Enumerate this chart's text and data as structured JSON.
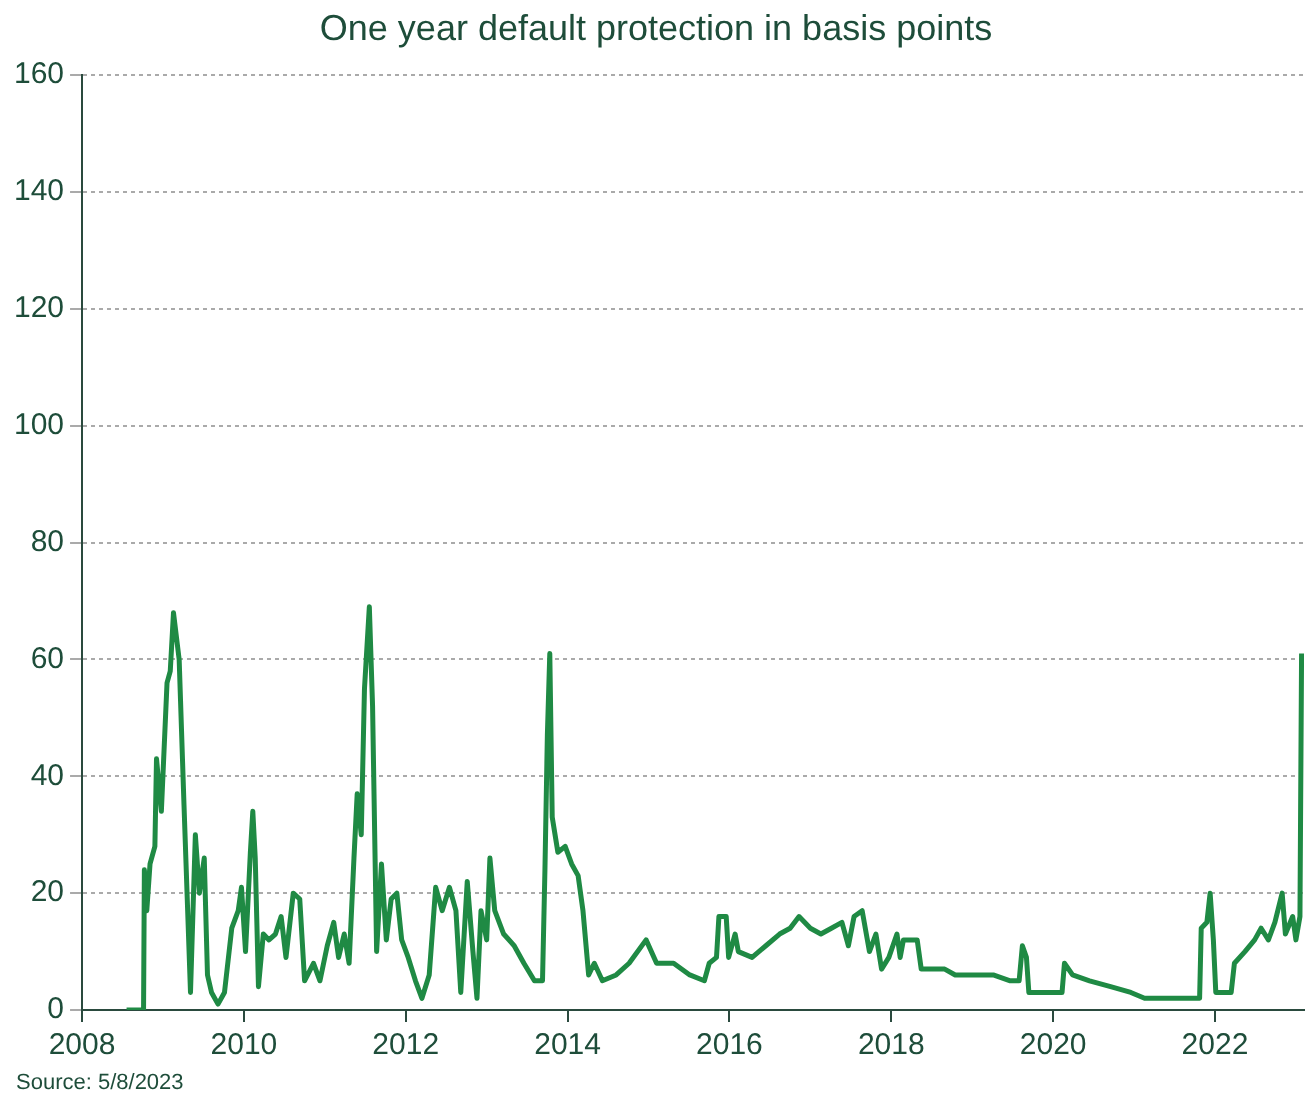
{
  "chart_data": {
    "type": "line",
    "subtitle": "One year default protection in basis points",
    "annotations": [
      "Source: 5/8/2023"
    ],
    "x": [
      2008.55,
      2008.76,
      2008.77,
      2008.8,
      2008.84,
      2008.9,
      2008.92,
      2008.98,
      2009.05,
      2009.09,
      2009.13,
      2009.2,
      2009.26,
      2009.3,
      2009.34,
      2009.4,
      2009.45,
      2009.51,
      2009.55,
      2009.6,
      2009.68,
      2009.76,
      2009.85,
      2009.93,
      2009.97,
      2010.02,
      2010.08,
      2010.11,
      2010.14,
      2010.18,
      2010.24,
      2010.31,
      2010.39,
      2010.46,
      2010.52,
      2010.61,
      2010.69,
      2010.75,
      2010.86,
      2010.94,
      2011.03,
      2011.11,
      2011.17,
      2011.24,
      2011.3,
      2011.36,
      2011.4,
      2011.45,
      2011.49,
      2011.55,
      2011.59,
      2011.64,
      2011.7,
      2011.76,
      2011.82,
      2011.89,
      2011.95,
      2012.03,
      2012.12,
      2012.2,
      2012.29,
      2012.37,
      2012.45,
      2012.54,
      2012.62,
      2012.68,
      2012.76,
      2012.83,
      2012.88,
      2012.93,
      2013.0,
      2013.04,
      2013.1,
      2013.21,
      2013.34,
      2013.46,
      2013.59,
      2013.69,
      2013.72,
      2013.75,
      2013.78,
      2013.81,
      2013.88,
      2013.97,
      2014.05,
      2014.13,
      2014.19,
      2014.26,
      2014.33,
      2014.43,
      2014.6,
      2014.76,
      2014.97,
      2015.1,
      2015.31,
      2015.51,
      2015.69,
      2015.75,
      2015.84,
      2015.87,
      2015.96,
      2015.99,
      2016.07,
      2016.11,
      2016.28,
      2016.45,
      2016.62,
      2016.75,
      2016.86,
      2017.0,
      2017.13,
      2017.26,
      2017.39,
      2017.47,
      2017.54,
      2017.64,
      2017.73,
      2017.81,
      2017.88,
      2017.97,
      2018.07,
      2018.11,
      2018.15,
      2018.32,
      2018.37,
      2018.66,
      2018.79,
      2019.0,
      2019.26,
      2019.47,
      2019.58,
      2019.62,
      2019.67,
      2019.7,
      2019.94,
      2020.11,
      2020.14,
      2020.24,
      2020.45,
      2020.71,
      2020.96,
      2021.13,
      2021.81,
      2021.83,
      2021.9,
      2021.94,
      2021.98,
      2022.01,
      2022.2,
      2022.24,
      2022.37,
      2022.49,
      2022.57,
      2022.66,
      2022.74,
      2022.83,
      2022.87,
      2022.96,
      2023.0,
      2023.05,
      2023.07
    ],
    "series": [
      {
        "color": "#1f8a44",
        "values": [
          0,
          0,
          24,
          17,
          25,
          28,
          43,
          34,
          56,
          58,
          68,
          60,
          35,
          19,
          3,
          30,
          20,
          26,
          6,
          3,
          1,
          3,
          14,
          17,
          21,
          10,
          27,
          34,
          26,
          4,
          13,
          12,
          13,
          16,
          9,
          20,
          19,
          5,
          8,
          5,
          11,
          15,
          9,
          13,
          8,
          26,
          37,
          30,
          55,
          69,
          52,
          10,
          25,
          12,
          19,
          20,
          12,
          9,
          5,
          2,
          6,
          21,
          17,
          21,
          17,
          3,
          22,
          10,
          2,
          17,
          12,
          26,
          17,
          13,
          11,
          8,
          5,
          5,
          24,
          47,
          61,
          33,
          27,
          28,
          25,
          23,
          17,
          6,
          8,
          5,
          6,
          8,
          12,
          8,
          8,
          6,
          5,
          8,
          9,
          16,
          16,
          9,
          13,
          10,
          9,
          11,
          13,
          14,
          16,
          14,
          13,
          14,
          15,
          11,
          16,
          17,
          10,
          13,
          7,
          9,
          13,
          9,
          12,
          12,
          7,
          7,
          6,
          6,
          6,
          5,
          5,
          11,
          9,
          3,
          3,
          3,
          8,
          6,
          5,
          4,
          3,
          2,
          2,
          14,
          15,
          20,
          12,
          3,
          3,
          8,
          10,
          12,
          14,
          12,
          15,
          20,
          13,
          16,
          12,
          16,
          61
        ]
      }
    ],
    "xlim": [
      2008,
      2023.1
    ],
    "ylim": [
      0,
      160
    ],
    "xticks": [
      2008,
      2010,
      2012,
      2014,
      2016,
      2018,
      2020,
      2022
    ],
    "yticks": [
      0,
      20,
      40,
      60,
      80,
      100,
      120,
      140,
      160
    ],
    "grid": "y",
    "line_style": "solid",
    "marker": "none"
  }
}
